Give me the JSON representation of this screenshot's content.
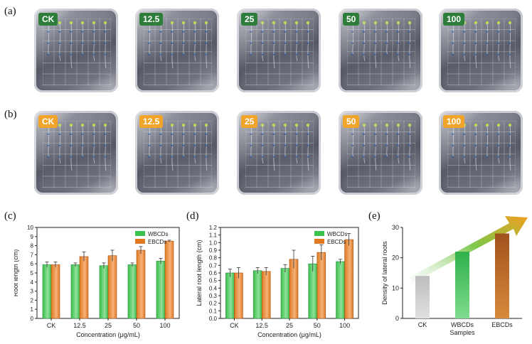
{
  "panels": {
    "a": "(a)",
    "b": "(b)",
    "c": "(c)",
    "d": "(d)",
    "e": "(e)"
  },
  "plates_a": [
    "CK",
    "12.5",
    "25",
    "50",
    "100"
  ],
  "plates_b": [
    "CK",
    "12.5",
    "25",
    "50",
    "100"
  ],
  "colors": {
    "wbcds": "#3cc04f",
    "ebcds": "#e07a20",
    "tag_green": "#2e7d3b",
    "tag_orange": "#f0a52a"
  },
  "chart_data": [
    {
      "type": "bar",
      "panel": "c",
      "title": "",
      "xlabel": "Concentration (μg/mL)",
      "ylabel": "Root length (cm)",
      "categories": [
        "CK",
        "12.5",
        "25",
        "50",
        "100"
      ],
      "ylim": [
        0,
        10
      ],
      "yticks": [
        "0",
        "1",
        "2",
        "3",
        "4",
        "5",
        "6",
        "7",
        "8",
        "9",
        "10"
      ],
      "legend": "top-right",
      "series": [
        {
          "name": "WBCDs",
          "values": [
            5.9,
            5.9,
            5.8,
            5.9,
            6.3
          ],
          "errors": [
            0.3,
            0.2,
            0.3,
            0.2,
            0.3
          ]
        },
        {
          "name": "EBCDs",
          "values": [
            5.9,
            6.8,
            6.9,
            7.5,
            8.5
          ],
          "errors": [
            0.3,
            0.5,
            0.6,
            0.4,
            0.1
          ]
        }
      ]
    },
    {
      "type": "bar",
      "panel": "d",
      "title": "",
      "xlabel": "Concentration (μg/mL)",
      "ylabel": "Lateral root length (cm)",
      "categories": [
        "CK",
        "12.5",
        "25",
        "50",
        "100"
      ],
      "ylim": [
        0,
        1.2
      ],
      "yticks": [
        "0.0",
        "0.1",
        "0.2",
        "0.3",
        "0.4",
        "0.5",
        "0.6",
        "0.7",
        "0.8",
        "0.9",
        "1.0",
        "1.1",
        "1.2"
      ],
      "legend": "top-right",
      "series": [
        {
          "name": "WBCDs",
          "values": [
            0.6,
            0.63,
            0.66,
            0.72,
            0.75
          ],
          "errors": [
            0.05,
            0.04,
            0.05,
            0.1,
            0.03
          ]
        },
        {
          "name": "EBCDs",
          "values": [
            0.6,
            0.62,
            0.78,
            0.87,
            1.04
          ],
          "errors": [
            0.07,
            0.05,
            0.12,
            0.1,
            0.08
          ]
        }
      ]
    },
    {
      "type": "bar",
      "panel": "e",
      "title": "",
      "xlabel": "Samples",
      "ylabel": "Density of lateral roots",
      "categories": [
        "CK",
        "WBCDs",
        "EBCDs"
      ],
      "values": [
        14,
        22,
        28
      ],
      "ylim": [
        0,
        30
      ],
      "yticks": [
        "0",
        "10",
        "20",
        "30"
      ],
      "colors": [
        "#bdbdbd",
        "#2fb04a",
        "#a0521c"
      ]
    }
  ]
}
